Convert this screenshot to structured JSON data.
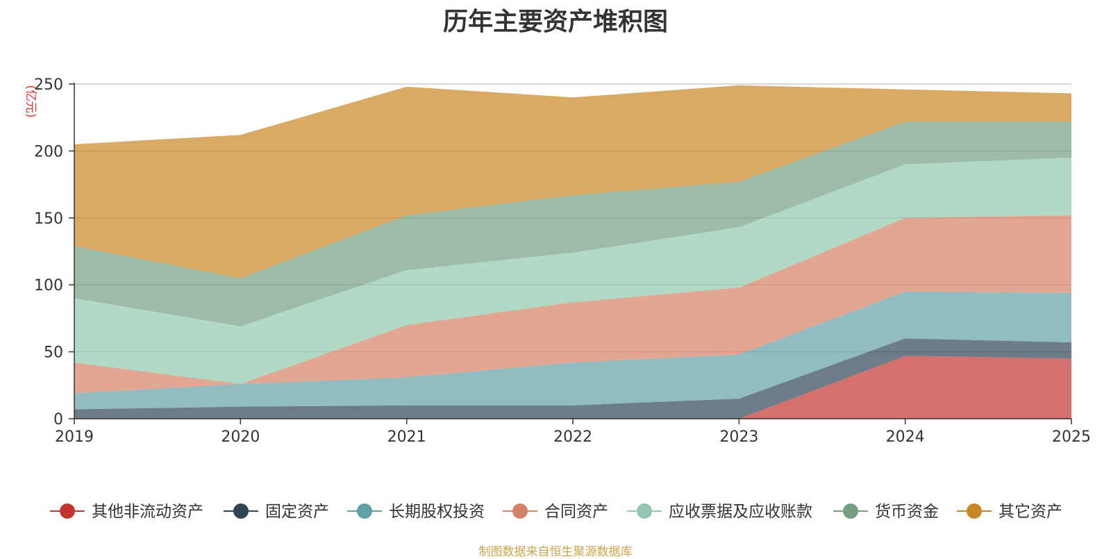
{
  "chart_data": {
    "type": "area",
    "stacked": true,
    "title": "历年主要资产堆积图",
    "ylabel": "(亿元)",
    "xlabel": "",
    "categories": [
      "2019",
      "2020",
      "2021",
      "2022",
      "2023",
      "2024",
      "2025"
    ],
    "ylim": [
      0,
      250
    ],
    "yticks": [
      0,
      50,
      100,
      150,
      200,
      250
    ],
    "grid": true,
    "legend_position": "bottom",
    "series": [
      {
        "name": "其他非流动资产",
        "color": "#c23531",
        "values": [
          0,
          0,
          0,
          0,
          0,
          47,
          45
        ]
      },
      {
        "name": "固定资产",
        "color": "#2f4554",
        "values": [
          7,
          9,
          10,
          10,
          15,
          13,
          12
        ]
      },
      {
        "name": "长期股权投资",
        "color": "#61a0a8",
        "values": [
          12,
          17,
          21,
          32,
          33,
          35,
          37
        ]
      },
      {
        "name": "合同资产",
        "color": "#d48265",
        "values": [
          23,
          0,
          39,
          45,
          50,
          55,
          58
        ]
      },
      {
        "name": "应收票据及应收账款",
        "color": "#91c7ae",
        "values": [
          48,
          43,
          41,
          37,
          45,
          40,
          43
        ]
      },
      {
        "name": "货币资金",
        "color": "#749f83",
        "values": [
          39,
          36,
          41,
          43,
          34,
          32,
          27
        ]
      },
      {
        "name": "其它资产",
        "color": "#ca8622",
        "values": [
          76,
          107,
          96,
          73,
          72,
          24,
          21
        ]
      }
    ],
    "source_note": "制图数据来自恒生聚源数据库"
  }
}
